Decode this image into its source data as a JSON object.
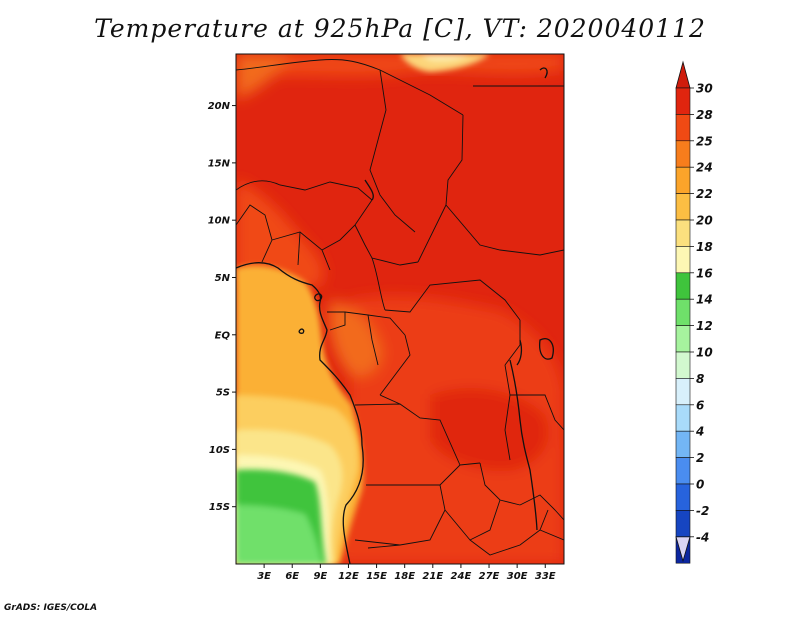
{
  "title": "Temperature at 925hPa [C], VT: 2020040112",
  "credit": "GrADS: IGES/COLA",
  "map": {
    "lon_range": [
      0,
      35
    ],
    "lat_range": [
      -20,
      24.5
    ],
    "lat_ticks": [
      {
        "value": 20,
        "label": "20N"
      },
      {
        "value": 15,
        "label": "15N"
      },
      {
        "value": 10,
        "label": "10N"
      },
      {
        "value": 5,
        "label": "5N"
      },
      {
        "value": 0,
        "label": "EQ"
      },
      {
        "value": -5,
        "label": "5S"
      },
      {
        "value": -10,
        "label": "10S"
      },
      {
        "value": -15,
        "label": "15S"
      }
    ],
    "lon_ticks": [
      {
        "value": 3,
        "label": "3E"
      },
      {
        "value": 6,
        "label": "6E"
      },
      {
        "value": 9,
        "label": "9E"
      },
      {
        "value": 12,
        "label": "12E"
      },
      {
        "value": 15,
        "label": "15E"
      },
      {
        "value": 18,
        "label": "18E"
      },
      {
        "value": 21,
        "label": "21E"
      },
      {
        "value": 24,
        "label": "24E"
      },
      {
        "value": 27,
        "label": "27E"
      },
      {
        "value": 30,
        "label": "30E"
      },
      {
        "value": 33,
        "label": "33E"
      }
    ]
  },
  "colorbar": {
    "labels": [
      "30",
      "28",
      "25",
      "24",
      "22",
      "20",
      "18",
      "16",
      "14",
      "12",
      "10",
      "8",
      "6",
      "4",
      "2",
      "0",
      "-2",
      "-4"
    ],
    "colors": [
      "#e0250f",
      "#f04a14",
      "#f77d1c",
      "#fba42a",
      "#fcbe43",
      "#fbe07e",
      "#fdf7b4",
      "#3fc43c",
      "#6fe06a",
      "#a6f39e",
      "#d2f8cf",
      "#d8f0fb",
      "#a9dbfa",
      "#73b6f5",
      "#4a8df0",
      "#2763dd",
      "#1645c1",
      "#0c26a0",
      "#091465"
    ],
    "top_arrow_color": "#cf1c0c",
    "bottom_arrow_color": "#d9d4f4"
  }
}
